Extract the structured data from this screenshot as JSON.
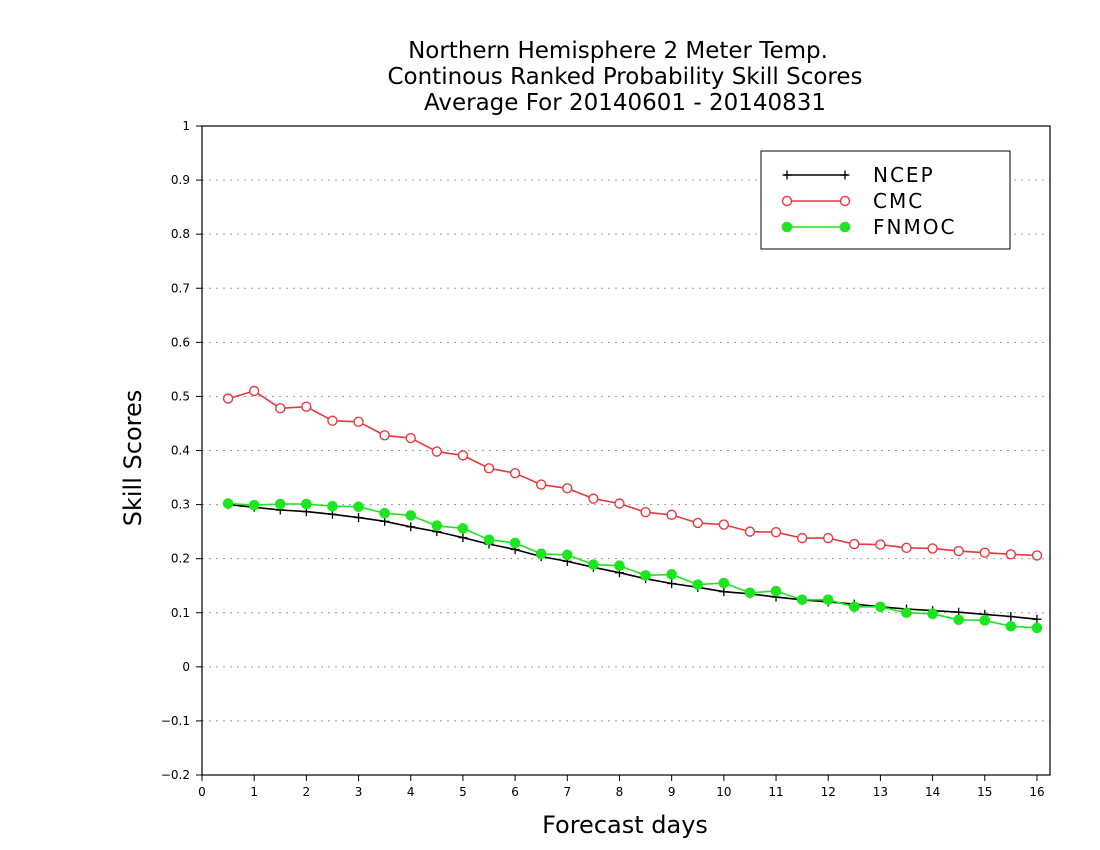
{
  "chart_data": {
    "type": "line",
    "title": [
      "Northern Hemisphere 2 Meter Temp.",
      "Continous Ranked Probability Skill Scores",
      "Average For 20140601 - 20140831"
    ],
    "xlabel": "Forecast days",
    "ylabel": "Skill Scores",
    "xlim": [
      0,
      16.25
    ],
    "ylim": [
      -0.2,
      1
    ],
    "x_ticks": [
      0,
      1,
      2,
      3,
      4,
      5,
      6,
      7,
      8,
      9,
      10,
      11,
      12,
      13,
      14,
      15,
      16
    ],
    "y_ticks": [
      -0.2,
      -0.1,
      0,
      0.1,
      0.2,
      0.3,
      0.4,
      0.5,
      0.6,
      0.7,
      0.8,
      0.9,
      1
    ],
    "y_tick_labels": [
      "−0.2",
      "−0.1",
      "0",
      "0.1",
      "0.2",
      "0.3",
      "0.4",
      "0.5",
      "0.6",
      "0.7",
      "0.8",
      "0.9",
      "1"
    ],
    "grid": "horizontal-dotted",
    "legend_position": "top-right",
    "x": [
      0.5,
      1,
      1.5,
      2,
      2.5,
      3,
      3.5,
      4,
      4.5,
      5,
      5.5,
      6,
      6.5,
      7,
      7.5,
      8,
      8.5,
      9,
      9.5,
      10,
      10.5,
      11,
      11.5,
      12,
      12.5,
      13,
      13.5,
      14,
      14.5,
      15,
      15.5,
      16
    ],
    "series": [
      {
        "name": "NCEP",
        "color": "#000000",
        "marker": "plus",
        "values": [
          0.3,
          0.295,
          0.29,
          0.287,
          0.282,
          0.276,
          0.269,
          0.259,
          0.25,
          0.239,
          0.227,
          0.217,
          0.204,
          0.195,
          0.184,
          0.174,
          0.163,
          0.154,
          0.147,
          0.139,
          0.135,
          0.129,
          0.124,
          0.12,
          0.116,
          0.111,
          0.107,
          0.104,
          0.101,
          0.097,
          0.093,
          0.088
        ]
      },
      {
        "name": "CMC",
        "color": "#e8383d",
        "marker": "open-circle",
        "values": [
          0.496,
          0.51,
          0.478,
          0.481,
          0.455,
          0.453,
          0.428,
          0.423,
          0.398,
          0.391,
          0.367,
          0.358,
          0.337,
          0.33,
          0.311,
          0.302,
          0.286,
          0.281,
          0.266,
          0.263,
          0.25,
          0.249,
          0.238,
          0.238,
          0.227,
          0.226,
          0.22,
          0.219,
          0.214,
          0.211,
          0.208,
          0.206
        ]
      },
      {
        "name": "FNMOC",
        "color": "#1ee61e",
        "marker": "filled-circle",
        "values": [
          0.302,
          0.299,
          0.301,
          0.301,
          0.297,
          0.296,
          0.284,
          0.28,
          0.261,
          0.256,
          0.235,
          0.229,
          0.209,
          0.207,
          0.189,
          0.187,
          0.169,
          0.171,
          0.152,
          0.155,
          0.137,
          0.14,
          0.124,
          0.124,
          0.111,
          0.111,
          0.1,
          0.098,
          0.087,
          0.086,
          0.075,
          0.072
        ]
      }
    ]
  }
}
